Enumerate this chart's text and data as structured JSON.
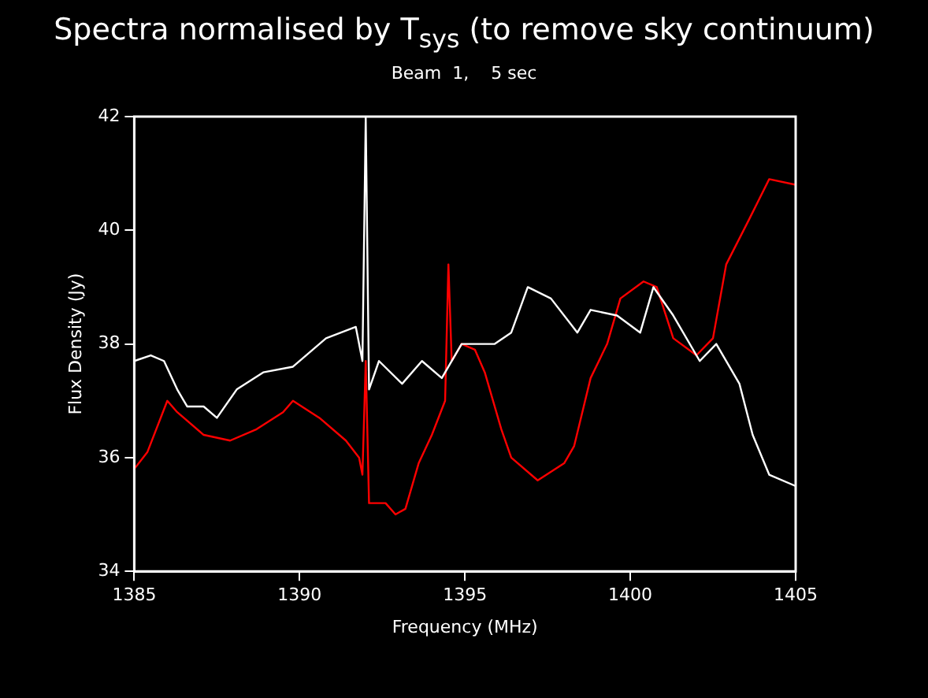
{
  "chart_data": {
    "type": "line",
    "title": "Spectra normalised by T$_{sys}$ (to remove sky continuum)",
    "subtitle": "Beam  1,    5 sec",
    "xlabel": "Frequency (MHz)",
    "ylabel": "Flux Density (Jy)",
    "xlim": [
      1385,
      1405
    ],
    "xticks": [
      1385,
      1390,
      1395,
      1400,
      1405
    ],
    "ylim": [
      34,
      42
    ],
    "yticks": [
      34,
      36,
      38,
      40,
      42
    ],
    "grid": false,
    "legend": false,
    "series": [
      {
        "color": "#ffffff",
        "x": [
          1385.0,
          1385.5,
          1385.9,
          1386.3,
          1386.6,
          1387.1,
          1387.5,
          1388.1,
          1388.9,
          1389.8,
          1390.8,
          1391.7,
          1391.9,
          1392.0,
          1392.1,
          1392.4,
          1393.1,
          1393.7,
          1394.3,
          1394.9,
          1395.3,
          1395.9,
          1396.4,
          1396.9,
          1397.6,
          1398.4,
          1398.8,
          1399.6,
          1400.3,
          1400.7,
          1401.3,
          1402.1,
          1402.6,
          1403.3,
          1403.7,
          1404.2,
          1405.0
        ],
        "values": [
          37.7,
          37.8,
          37.7,
          37.2,
          36.9,
          36.9,
          36.7,
          37.2,
          37.5,
          37.6,
          38.1,
          38.3,
          37.7,
          42.0,
          37.2,
          37.7,
          37.3,
          37.7,
          37.4,
          38.0,
          38.0,
          38.0,
          38.2,
          39.0,
          38.8,
          38.2,
          38.6,
          38.5,
          38.2,
          39.0,
          38.5,
          37.7,
          38.0,
          37.3,
          36.4,
          35.7,
          35.5
        ]
      },
      {
        "color": "#ff0000",
        "x": [
          1385.0,
          1385.4,
          1386.0,
          1386.3,
          1387.1,
          1387.9,
          1388.7,
          1389.5,
          1389.8,
          1390.6,
          1391.4,
          1391.8,
          1391.9,
          1392.0,
          1392.1,
          1392.6,
          1392.9,
          1393.2,
          1393.6,
          1394.0,
          1394.4,
          1394.5,
          1394.6,
          1394.9,
          1395.3,
          1395.6,
          1396.1,
          1396.4,
          1397.2,
          1398.0,
          1398.3,
          1398.8,
          1399.3,
          1399.7,
          1400.4,
          1400.8,
          1401.3,
          1402.0,
          1402.5,
          1402.9,
          1403.6,
          1404.2,
          1405.0
        ],
        "values": [
          35.8,
          36.1,
          37.0,
          36.8,
          36.4,
          36.3,
          36.5,
          36.8,
          37.0,
          36.7,
          36.3,
          36.0,
          35.7,
          37.7,
          35.2,
          35.2,
          35.0,
          35.1,
          35.9,
          36.4,
          37.0,
          39.4,
          37.7,
          38.0,
          37.9,
          37.5,
          36.5,
          36.0,
          35.6,
          35.9,
          36.2,
          37.4,
          38.0,
          38.8,
          39.1,
          39.0,
          38.1,
          37.8,
          38.1,
          39.4,
          40.2,
          40.9,
          40.8
        ]
      }
    ]
  }
}
